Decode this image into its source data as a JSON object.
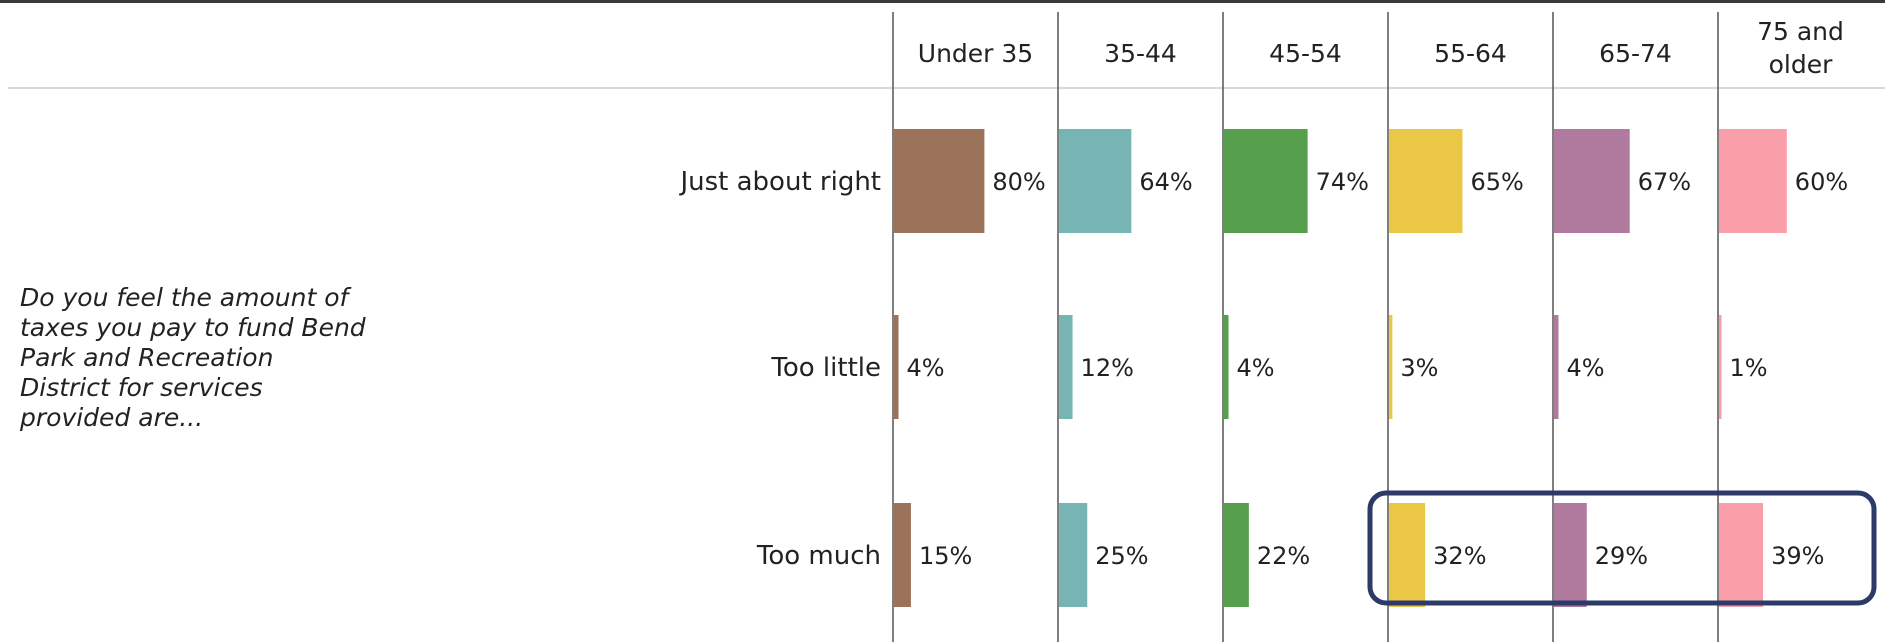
{
  "chart_data": {
    "type": "bar",
    "orientation": "horizontal",
    "layout": "small-multiples by age group",
    "question": [
      "Do you feel the amount of",
      "taxes you pay to fund Bend",
      "Park and Recreation",
      "District for services",
      "provided are..."
    ],
    "categories": [
      "Just about right",
      "Too little",
      "Too much"
    ],
    "series": [
      {
        "name": "Under 35",
        "header": [
          "Under 35"
        ],
        "color": "#9b735b",
        "values": [
          80,
          4,
          15
        ],
        "labels": [
          "80%",
          "4%",
          "15%"
        ]
      },
      {
        "name": "35-44",
        "header": [
          "35-44"
        ],
        "color": "#76b5b4",
        "values": [
          64,
          12,
          25
        ],
        "labels": [
          "64%",
          "12%",
          "25%"
        ]
      },
      {
        "name": "45-54",
        "header": [
          "45-54"
        ],
        "color": "#559f4d",
        "values": [
          74,
          4,
          22
        ],
        "labels": [
          "74%",
          "4%",
          "22%"
        ]
      },
      {
        "name": "55-64",
        "header": [
          "55-64"
        ],
        "color": "#eac744",
        "values": [
          65,
          3,
          32
        ],
        "labels": [
          "65%",
          "3%",
          "32%"
        ]
      },
      {
        "name": "65-74",
        "header": [
          "65-74"
        ],
        "color": "#b07a9f",
        "values": [
          67,
          4,
          29
        ],
        "labels": [
          "67%",
          "4%",
          "29%"
        ]
      },
      {
        "name": "75 and older",
        "header": [
          "75 and",
          "older"
        ],
        "color": "#fa9ea9",
        "values": [
          60,
          1,
          39
        ],
        "labels": [
          "60%",
          "1%",
          "39%"
        ]
      }
    ],
    "value_max": 100,
    "highlight": {
      "category": "Too much",
      "series": [
        "55-64",
        "65-74",
        "75 and older"
      ],
      "color": "#2c3a68"
    }
  }
}
